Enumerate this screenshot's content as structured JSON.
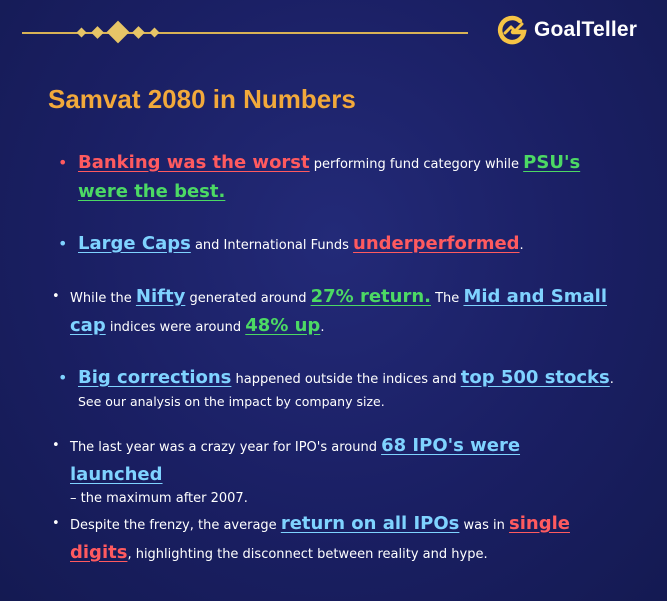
{
  "header": {
    "brand_name": "GoalTeller"
  },
  "title": "Samvat 2080 in Numbers",
  "colors": {
    "accent_gold": "#d8b256",
    "title_orange": "#f2a93b",
    "highlight_red": "#ff5a5f",
    "highlight_green": "#4cd964",
    "highlight_blue": "#7fd3ff",
    "background": "#1a1f63"
  },
  "bullets": [
    {
      "p1": "Banking was the worst",
      "p2": " performing fund category while ",
      "p3": "PSU's were the best."
    },
    {
      "p1": "Large Caps",
      "p2": " and International Funds ",
      "p3": "underperformed",
      "p4": "."
    },
    {
      "p1": "While the ",
      "p2": "Nifty",
      "p3": " generated around ",
      "p4": "27% return.",
      "p5": " The ",
      "p6": "Mid and Small cap",
      "p7": " indices were around ",
      "p8": "48% up",
      "p9": "."
    },
    {
      "p1": "Big corrections",
      "p2": " happened outside the indices and ",
      "p3": "top 500 stocks",
      "p4": ".",
      "p5": "See our analysis on the impact by company size."
    },
    {
      "p1": "The last year was a crazy year for IPO's around ",
      "p2": "68 IPO's were launched",
      "p3": "– the maximum after 2007."
    },
    {
      "p1": "Despite the frenzy, the average ",
      "p2": "return on all IPOs",
      "p3": " was in ",
      "p4": "single digits",
      "p5": ", highlighting the disconnect between reality and hype."
    }
  ]
}
